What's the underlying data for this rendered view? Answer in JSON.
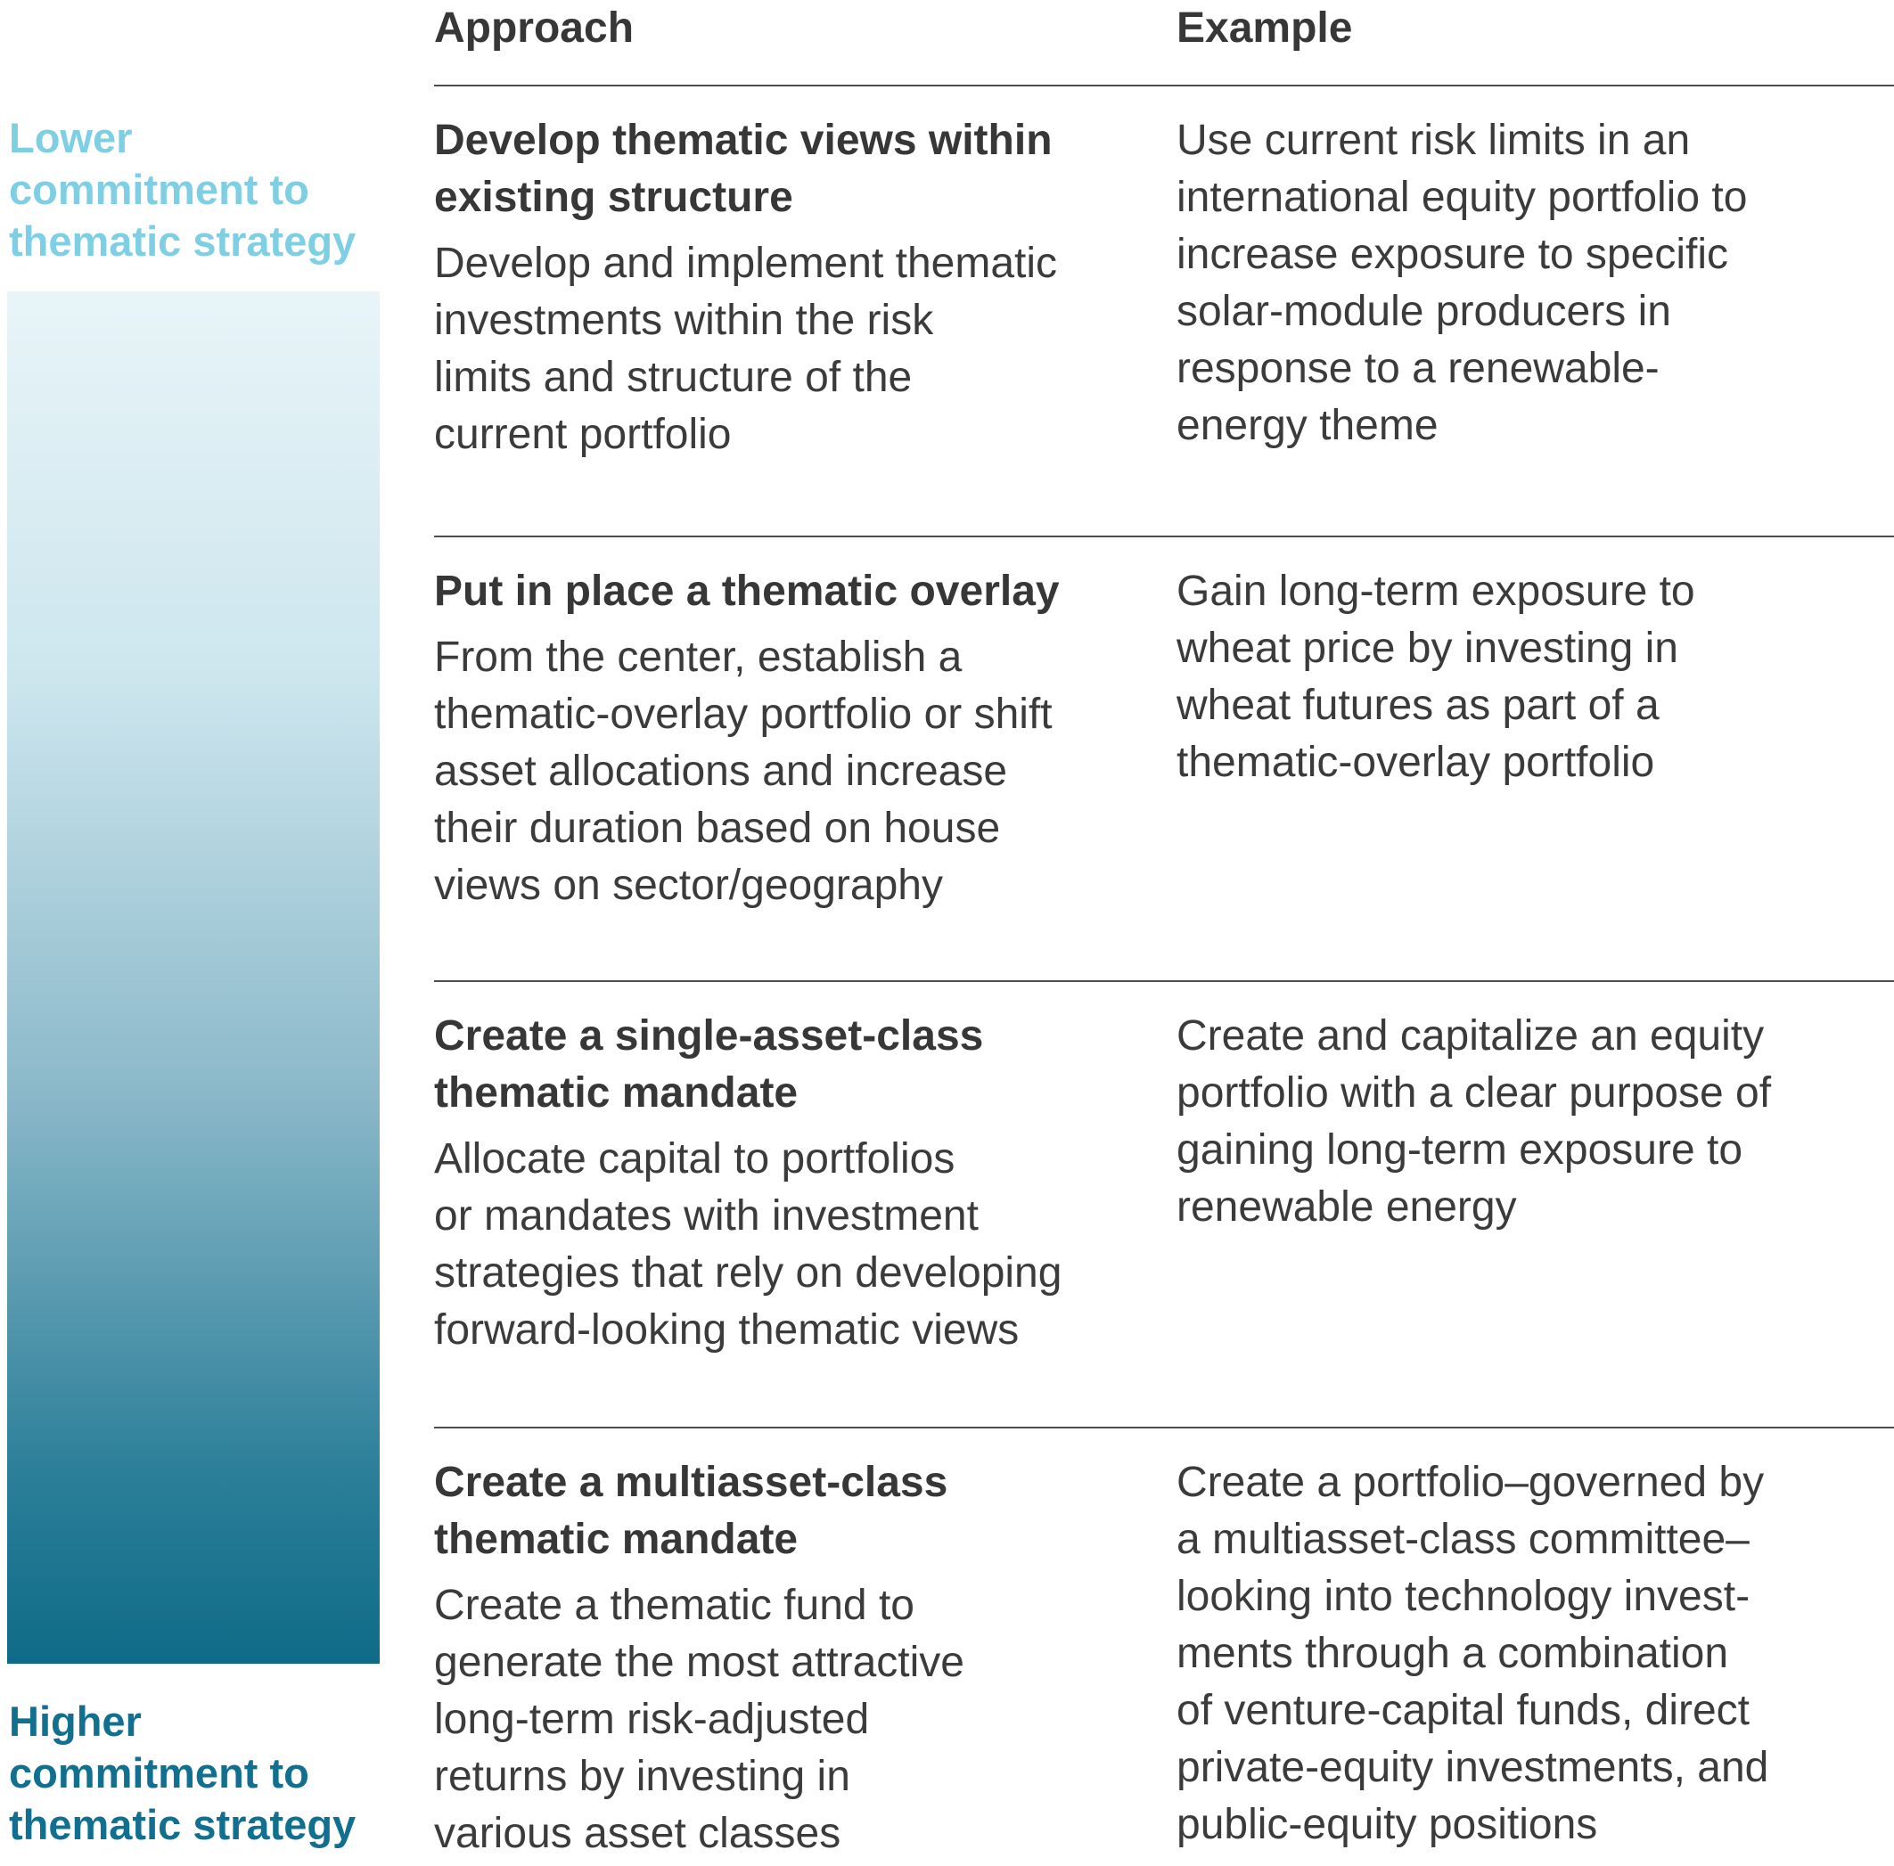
{
  "legend": {
    "lower_label": "Lower\ncommitment to\nthematic strategy",
    "higher_label": "Higher\ncommitment to\nthematic strategy",
    "lower_label_color": "#7ecfe3",
    "higher_label_color": "#11708f",
    "gradient_top_color": "#e8f4f8",
    "gradient_bottom_color": "#0e6b87"
  },
  "table": {
    "headers": [
      "Approach",
      "Example"
    ],
    "rows": [
      {
        "approach_title": "Develop thematic views within\nexisting structure",
        "approach_description": "Develop and implement thematic\ninvestments within the risk\nlimits and structure of the\ncurrent portfolio",
        "example": "Use current risk limits in an\ninternational equity portfolio to\nincrease exposure to specific\nsolar-module producers in\nresponse to a renewable-\nenergy theme"
      },
      {
        "approach_title": "Put in place a thematic overlay",
        "approach_description": "From the center, establish a\nthematic-overlay portfolio or shift\nasset allocations and increase\ntheir duration based on house\nviews on sector/geography",
        "example": "Gain long-term exposure to\nwheat price by investing in\nwheat futures as part of a\nthematic-overlay portfolio"
      },
      {
        "approach_title": "Create a single-asset-class\nthematic mandate",
        "approach_description": "Allocate capital to portfolios\nor mandates with investment\nstrategies that rely on developing\nforward-looking thematic views",
        "example": "Create and capitalize an equity\nportfolio with a clear purpose of\ngaining long-term exposure to\nrenewable energy"
      },
      {
        "approach_title": "Create a multiasset-class\nthematic mandate",
        "approach_description": "Create a thematic fund to\ngenerate the most attractive\nlong-term risk-adjusted\nreturns by investing in\nvarious asset classes",
        "example": "Create a portfolio–governed by\na multiasset-class committee–\nlooking into technology invest-\nments through a combination\nof venture-capital funds, direct\nprivate-equity investments, and\npublic-equity positions"
      }
    ]
  }
}
